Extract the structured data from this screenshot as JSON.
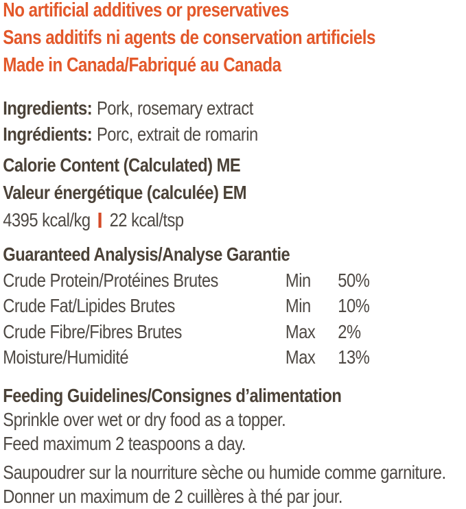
{
  "colors": {
    "accent_orange": "#e3582a",
    "separator_orange": "#d44a27",
    "heading_dark": "#4b4238",
    "body_text": "#4e4944",
    "background": "#ffffff"
  },
  "claims": {
    "line_en": "No artificial additives or preservatives",
    "line_fr": "Sans additifs ni agents de conservation artificiels",
    "line_origin": "Made in Canada/Fabriqué au Canada"
  },
  "ingredients": {
    "label_en": "Ingredients:",
    "value_en": "Pork, rosemary extract",
    "label_fr": "Ingrédients:",
    "value_fr": "Porc, extrait de romarin"
  },
  "calories": {
    "heading_en": "Calorie Content (Calculated) ME",
    "heading_fr": "Valeur énergétique (calculée) EM",
    "value_per_kg": "4395 kcal/kg",
    "value_per_tsp": "22 kcal/tsp"
  },
  "guaranteed_analysis": {
    "heading": "Guaranteed Analysis/Analyse Garantie",
    "rows": [
      {
        "nutrient": "Crude Protein/Protéines Brutes",
        "qualifier": "Min",
        "value": "50%"
      },
      {
        "nutrient": "Crude Fat/Lipides Brutes",
        "qualifier": "Min",
        "value": "10%"
      },
      {
        "nutrient": "Crude Fibre/Fibres Brutes",
        "qualifier": "Max",
        "value": "2%"
      },
      {
        "nutrient": "Moisture/Humidité",
        "qualifier": "Max",
        "value": "13%"
      }
    ]
  },
  "feeding_guidelines": {
    "heading": "Feeding Guidelines/Consignes d’alimentation",
    "en_lines": [
      "Sprinkle over wet or dry food as a topper.",
      "Feed maximum 2 teaspoons a day."
    ],
    "fr_lines": [
      "Saupoudrer sur la nourriture sèche ou humide comme garniture.",
      "Donner un maximum de 2 cuillères à thé par jour."
    ]
  }
}
